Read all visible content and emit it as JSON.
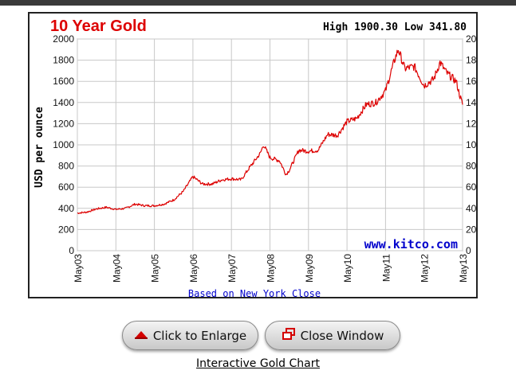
{
  "chart_data": {
    "type": "line",
    "title": "10 Year Gold",
    "high_low": "High 1900.30 Low 341.80",
    "ylabel": "USD per ounce",
    "xlabel": "",
    "footnote": "Based on New York Close",
    "watermark": "www.kitco.com",
    "ylim": [
      0,
      2000
    ],
    "y_ticks": [
      "0",
      "200",
      "400",
      "600",
      "800",
      "1000",
      "1200",
      "1400",
      "1600",
      "1800",
      "2000"
    ],
    "x_ticks": [
      "May03",
      "May04",
      "May05",
      "May06",
      "May07",
      "May08",
      "May09",
      "May10",
      "May11",
      "May12",
      "May13"
    ],
    "grid": true,
    "colors": {
      "line": "#dd0000",
      "title": "#dd0000",
      "watermark": "#0000cc",
      "footnote": "#0000cc",
      "grid": "#c8c8c8"
    },
    "series": [
      {
        "x": [
          "2003-05",
          "2003-08",
          "2003-11",
          "2004-02",
          "2004-05",
          "2004-08",
          "2004-11",
          "2005-02",
          "2005-05",
          "2005-08",
          "2005-11",
          "2006-02",
          "2006-05",
          "2006-08",
          "2006-11",
          "2007-02",
          "2007-05",
          "2007-08",
          "2007-11",
          "2008-02",
          "2008-03",
          "2008-05",
          "2008-08",
          "2008-10",
          "2008-11",
          "2009-02",
          "2009-05",
          "2009-08",
          "2009-11",
          "2010-02",
          "2010-05",
          "2010-08",
          "2010-11",
          "2011-02",
          "2011-05",
          "2011-08",
          "2011-09",
          "2011-11",
          "2012-02",
          "2012-05",
          "2012-08",
          "2012-10",
          "2012-12",
          "2013-03",
          "2013-04",
          "2013-05"
        ],
        "y": [
          355,
          365,
          395,
          410,
          390,
          400,
          440,
          425,
          425,
          440,
          480,
          560,
          700,
          630,
          630,
          670,
          680,
          670,
          800,
          920,
          1000,
          880,
          850,
          720,
          760,
          950,
          940,
          950,
          1100,
          1090,
          1220,
          1250,
          1380,
          1400,
          1510,
          1820,
          1900,
          1720,
          1740,
          1560,
          1620,
          1780,
          1680,
          1600,
          1480,
          1380
        ]
      }
    ]
  },
  "buttons": {
    "enlarge_label": "Click to Enlarge",
    "close_label": "Close Window"
  },
  "link_label": "Interactive Gold Chart"
}
